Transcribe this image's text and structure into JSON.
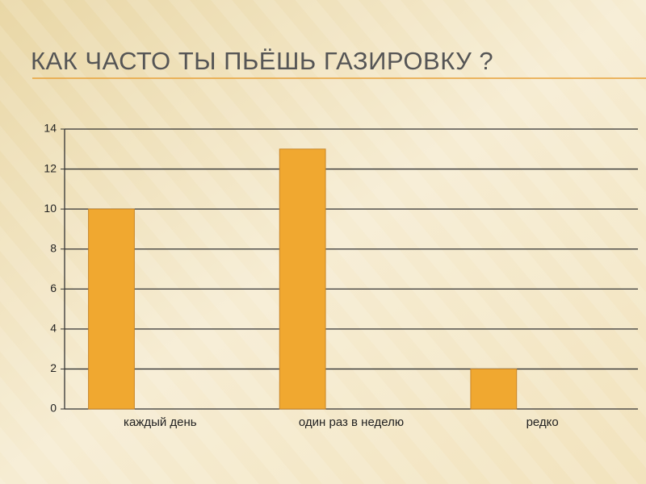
{
  "chart_data": {
    "type": "bar",
    "title": "КАК ЧАСТО ТЫ ПЬЁШЬ  ГАЗИРОВКУ ?",
    "categories": [
      "каждый день",
      "один раз в неделю",
      "редко"
    ],
    "values": [
      10,
      13,
      2
    ],
    "color": "#f0a830",
    "ylim": [
      0,
      14
    ],
    "yticks": [
      0,
      2,
      4,
      6,
      8,
      10,
      12,
      14
    ],
    "grid": true
  }
}
